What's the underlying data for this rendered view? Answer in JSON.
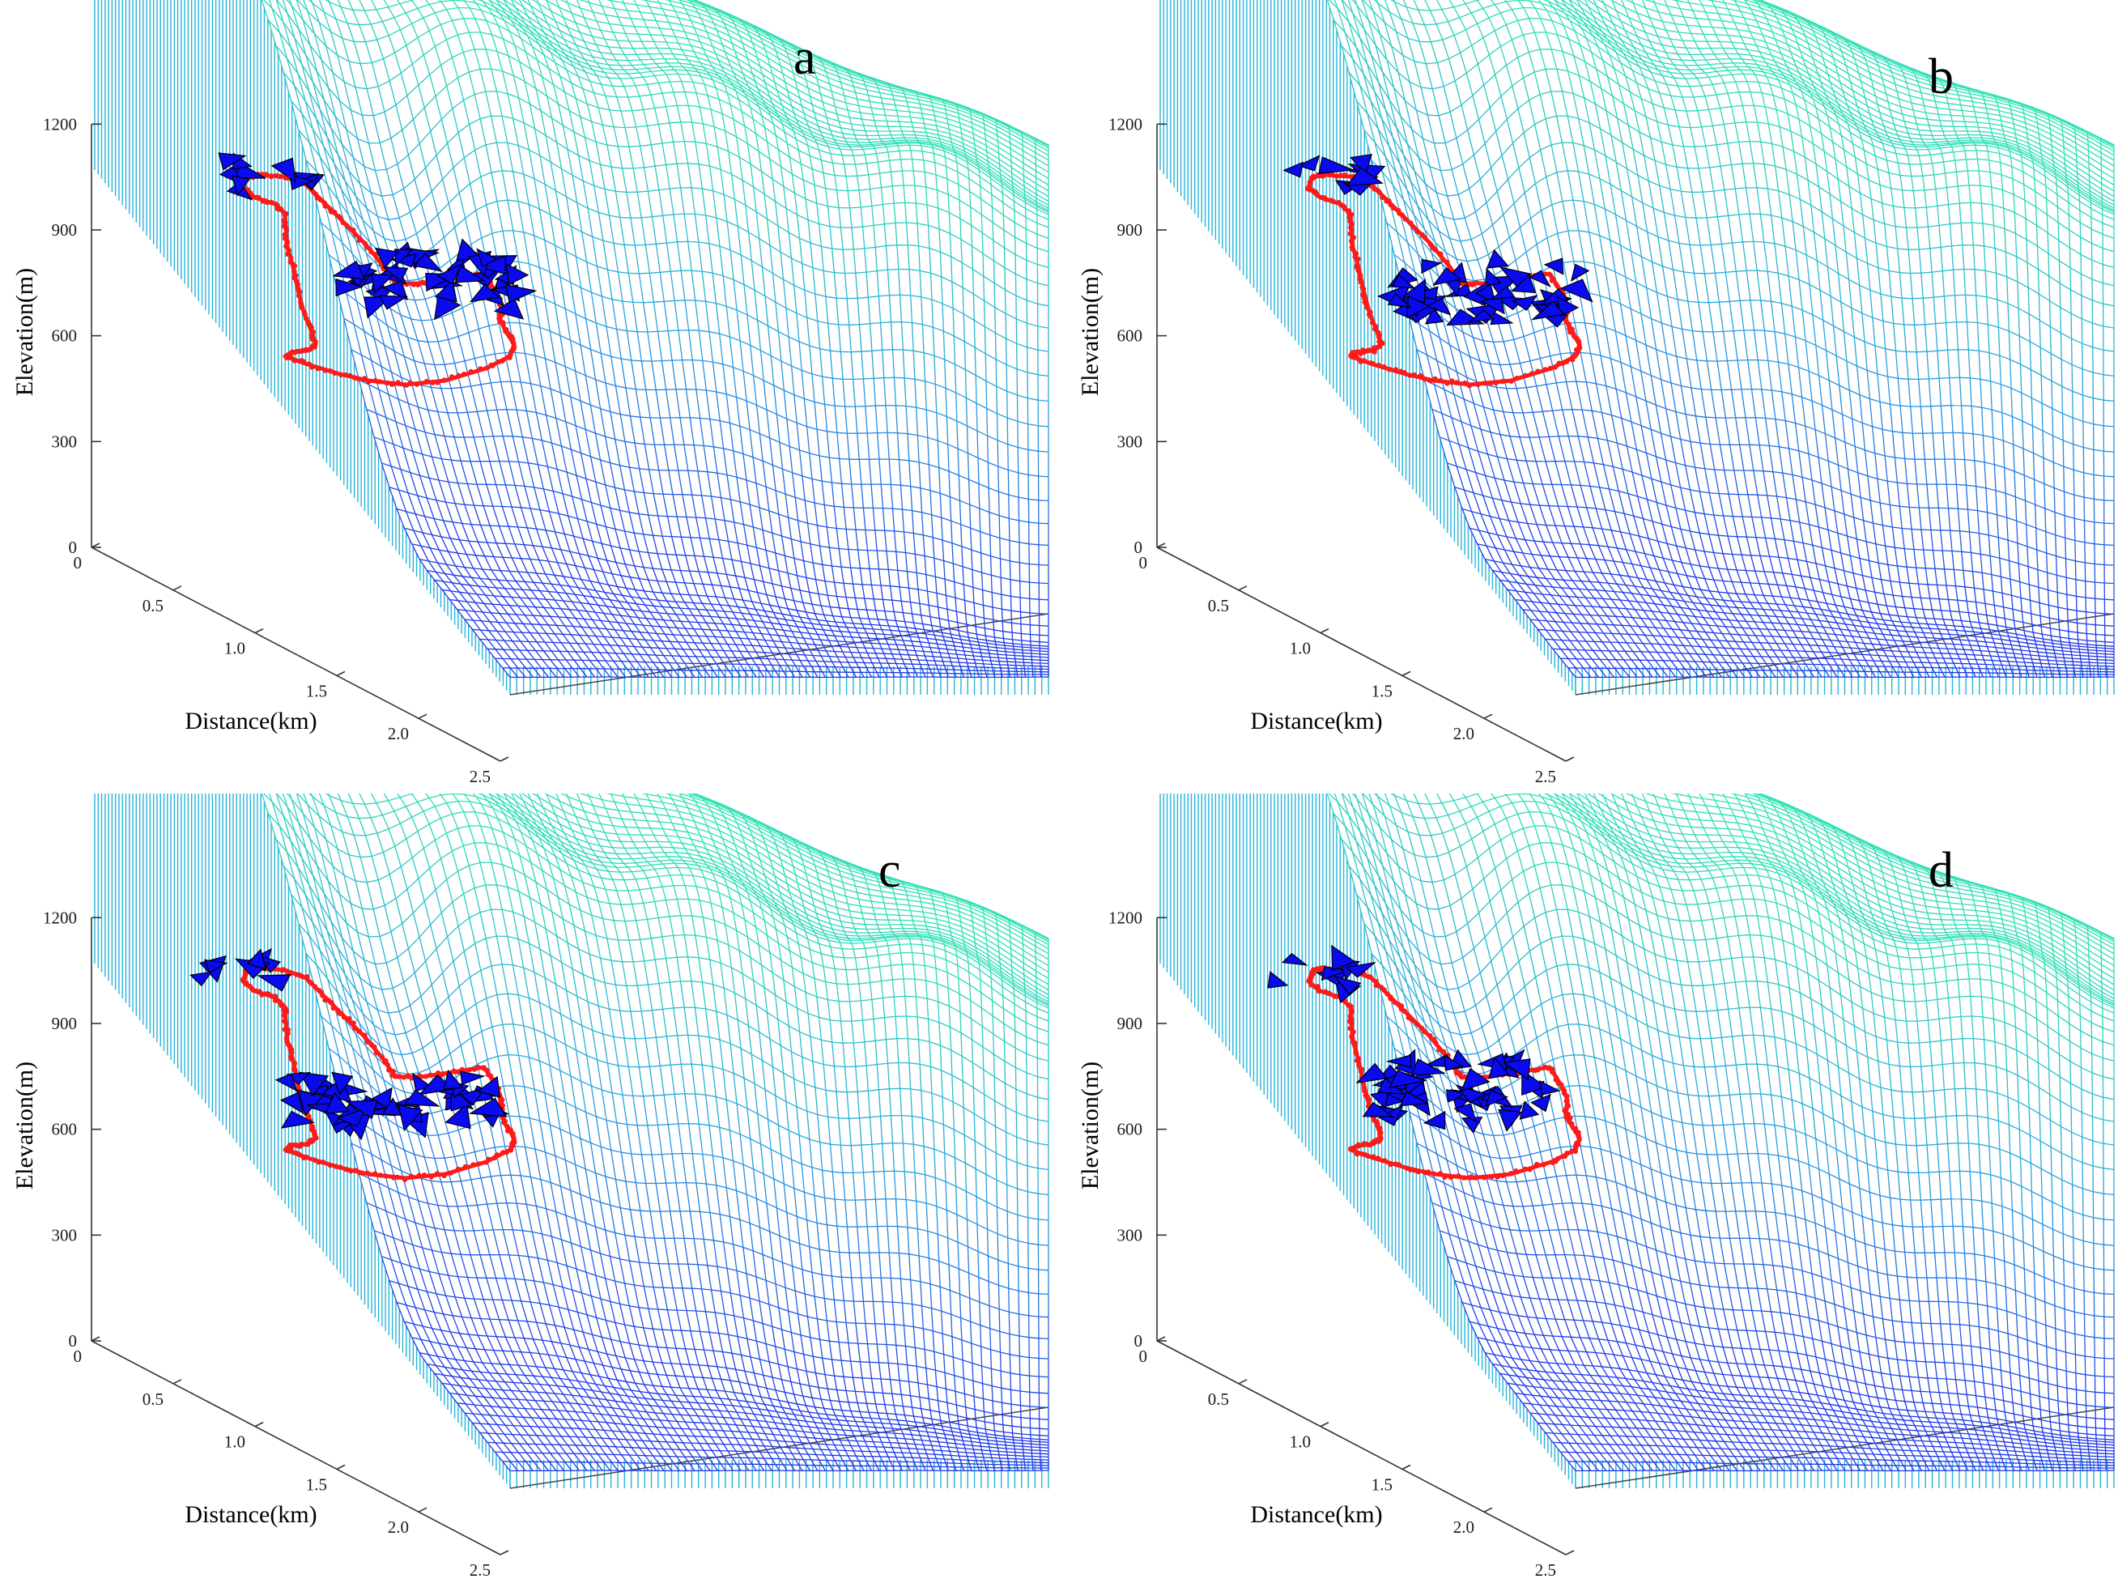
{
  "figure": {
    "panels": [
      {
        "label": "a",
        "name": "panel-a"
      },
      {
        "label": "b",
        "name": "panel-b"
      },
      {
        "label": "c",
        "name": "panel-c"
      },
      {
        "label": "d",
        "name": "panel-d"
      }
    ]
  },
  "colors": {
    "mesh_low": "#1f2fe8",
    "mesh_mid": "#2aa0de",
    "mesh_high": "#2fe3b4",
    "wall": "#25b5d9",
    "path": "#ff1a1a",
    "agents": "#0a0af0",
    "agent_edge": "#000000"
  },
  "chart_data": [
    {
      "panel": "a",
      "type": "surface",
      "title": "a",
      "zlabel": "Elevation(m)",
      "xlabel": "Distance(km)",
      "zticks": [
        "0",
        "300",
        "600",
        "900",
        "1200"
      ],
      "xticks": [
        "0",
        "0.5",
        "1.0",
        "1.5",
        "2.0",
        "2.5"
      ],
      "zlim": [
        0,
        1200
      ],
      "xlim": [
        0,
        2.5
      ],
      "series": [
        {
          "name": "path",
          "marker": "*",
          "color": "red"
        },
        {
          "name": "agents",
          "marker": "triangle",
          "color": "blue"
        }
      ]
    },
    {
      "panel": "b",
      "type": "surface",
      "title": "b",
      "zlabel": "Elevation(m)",
      "xlabel": "Distance(km)",
      "zticks": [
        "0",
        "300",
        "600",
        "900",
        "1200"
      ],
      "xticks": [
        "0",
        "0.5",
        "1.0",
        "1.5",
        "2.0",
        "2.5"
      ],
      "zlim": [
        0,
        1200
      ],
      "xlim": [
        0,
        2.5
      ],
      "series": [
        {
          "name": "path",
          "marker": "*",
          "color": "red"
        },
        {
          "name": "agents",
          "marker": "triangle",
          "color": "blue"
        }
      ]
    },
    {
      "panel": "c",
      "type": "surface",
      "title": "c",
      "zlabel": "Elevation(m)",
      "xlabel": "Distance(km)",
      "zticks": [
        "0",
        "300",
        "600",
        "900",
        "1200"
      ],
      "xticks": [
        "0",
        "0.5",
        "1.0",
        "1.5",
        "2.0",
        "2.5"
      ],
      "zlim": [
        0,
        1200
      ],
      "xlim": [
        0,
        2.5
      ],
      "series": [
        {
          "name": "path",
          "marker": "*",
          "color": "red"
        },
        {
          "name": "agents",
          "marker": "triangle",
          "color": "blue"
        }
      ]
    },
    {
      "panel": "d",
      "type": "surface",
      "title": "d",
      "zlabel": "Elevation(m)",
      "xlabel": "Distance(km)",
      "zticks": [
        "0",
        "300",
        "600",
        "900",
        "1200"
      ],
      "xticks": [
        "0",
        "0.5",
        "1.0",
        "1.5",
        "2.0",
        "2.5"
      ],
      "zlim": [
        0,
        1200
      ],
      "xlim": [
        0,
        2.5
      ],
      "series": [
        {
          "name": "path",
          "marker": "*",
          "color": "red"
        },
        {
          "name": "agents",
          "marker": "triangle",
          "color": "blue"
        }
      ]
    }
  ]
}
